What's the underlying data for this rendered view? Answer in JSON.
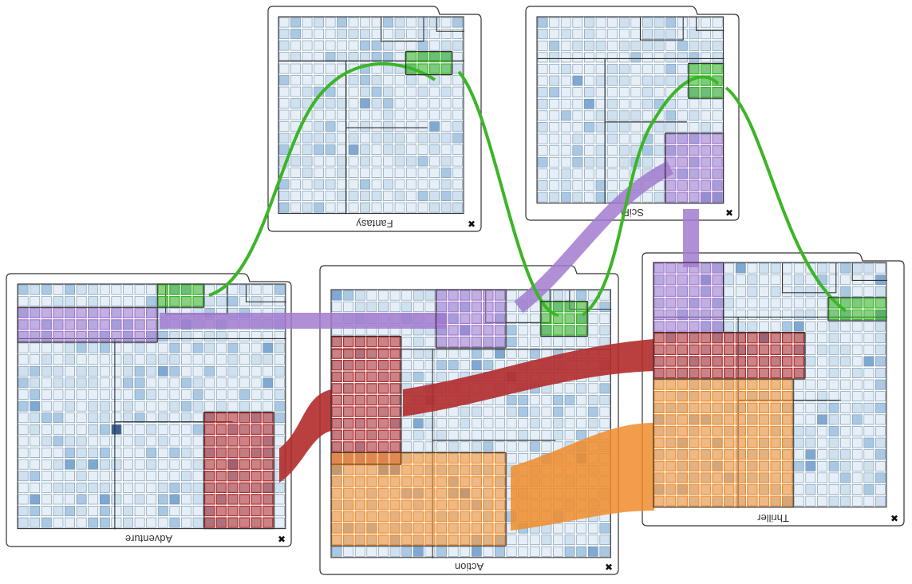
{
  "panels": [
    {
      "id": "fantasy",
      "title": "Fantasy"
    },
    {
      "id": "scifi",
      "title": "SciFi"
    },
    {
      "id": "adventure",
      "title": "Adventure"
    },
    {
      "id": "action",
      "title": "Action"
    },
    {
      "id": "thriller",
      "title": "Thriller"
    }
  ],
  "close_glyph": "✖",
  "selection_colors": {
    "green": "#3cb527",
    "purple": "#a27bcf",
    "red": "#b22b2b",
    "orange": "#f08c2c"
  },
  "heat_colors": [
    "#e6eff7",
    "#cfe0ef",
    "#a9c8e3",
    "#7fa9d2",
    "#3d5f8f"
  ]
}
